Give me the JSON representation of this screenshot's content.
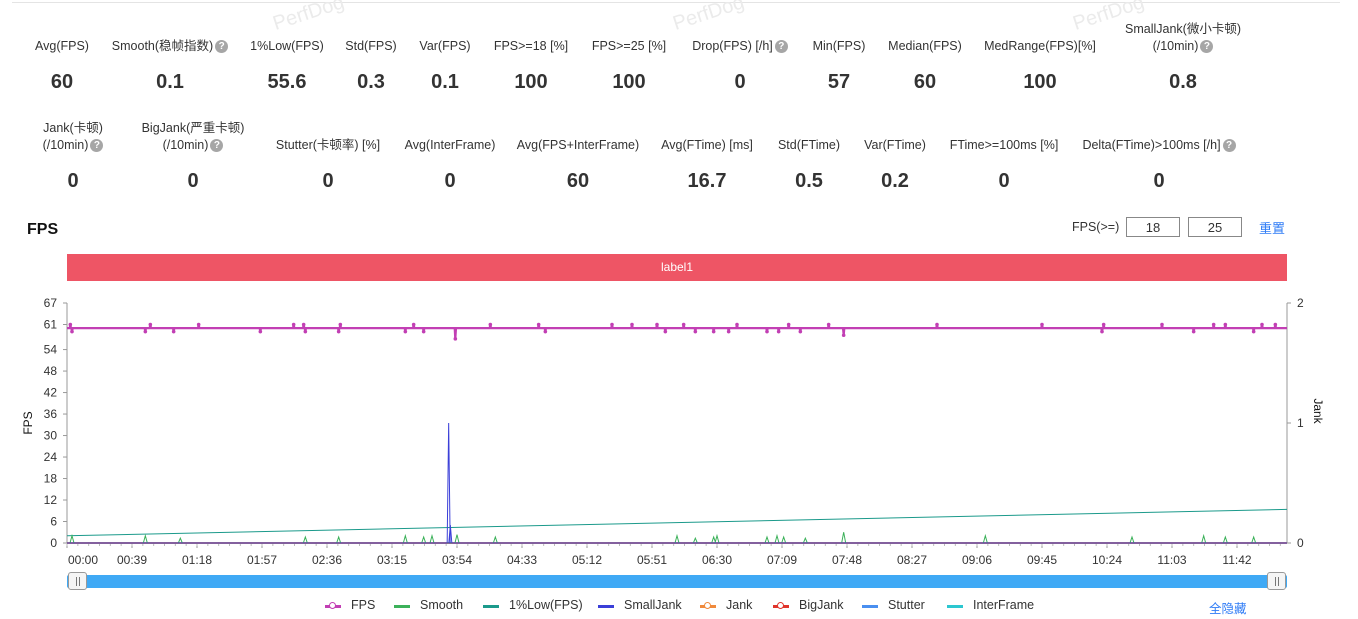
{
  "watermark_text": "PerfDog",
  "metrics_row1": [
    {
      "label": "Avg(FPS)",
      "value": "60",
      "help": false
    },
    {
      "label": "Smooth(稳帧指数)",
      "value": "0.1",
      "help": true
    },
    {
      "label": "1%Low(FPS)",
      "value": "55.6",
      "help": false
    },
    {
      "label": "Std(FPS)",
      "value": "0.3",
      "help": false
    },
    {
      "label": "Var(FPS)",
      "value": "0.1",
      "help": false
    },
    {
      "label": "FPS>=18 [%]",
      "value": "100",
      "help": false
    },
    {
      "label": "FPS>=25 [%]",
      "value": "100",
      "help": false
    },
    {
      "label": "Drop(FPS) [/h]",
      "value": "0",
      "help": true
    },
    {
      "label": "Min(FPS)",
      "value": "57",
      "help": false
    },
    {
      "label": "Median(FPS)",
      "value": "60",
      "help": false
    },
    {
      "label": "MedRange(FPS)[%]",
      "value": "100",
      "help": false
    },
    {
      "label": "SmallJank(微小卡顿)",
      "label2": "(/10min)",
      "value": "0.8",
      "help": true
    }
  ],
  "metrics_row2": [
    {
      "label": "Jank(卡顿)",
      "label2": "(/10min)",
      "value": "0",
      "help": true
    },
    {
      "label": "BigJank(严重卡顿)",
      "label2": "(/10min)",
      "value": "0",
      "help": true
    },
    {
      "label": "Stutter(卡顿率) [%]",
      "value": "0",
      "help": false
    },
    {
      "label": "Avg(InterFrame)",
      "value": "0",
      "help": false
    },
    {
      "label": "Avg(FPS+InterFrame)",
      "value": "60",
      "help": false
    },
    {
      "label": "Avg(FTime) [ms]",
      "value": "16.7",
      "help": false
    },
    {
      "label": "Std(FTime)",
      "value": "0.5",
      "help": false
    },
    {
      "label": "Var(FTime)",
      "value": "0.2",
      "help": false
    },
    {
      "label": "FTime>=100ms [%]",
      "value": "0",
      "help": false
    },
    {
      "label": "Delta(FTime)>100ms [/h]",
      "value": "0",
      "help": true
    }
  ],
  "help_glyph": "?",
  "chart_section": {
    "title": "FPS",
    "filter_label": "FPS(>=)",
    "filter_value_1": "18",
    "filter_value_2": "25",
    "reset_label": "重置",
    "label_bar_text": "label1",
    "hide_all_label": "全隐藏"
  },
  "legend": [
    {
      "name": "FPS",
      "color": "#c23fb4",
      "marker": true
    },
    {
      "name": "Smooth",
      "color": "#3cb15a",
      "marker": false
    },
    {
      "name": "1%Low(FPS)",
      "color": "#1b9a8b",
      "marker": false
    },
    {
      "name": "SmallJank",
      "color": "#3b3fd8",
      "marker": false
    },
    {
      "name": "Jank",
      "color": "#f08a3c",
      "marker": true
    },
    {
      "name": "BigJank",
      "color": "#e0342b",
      "marker": true
    },
    {
      "name": "Stutter",
      "color": "#4a8ff0",
      "marker": false
    },
    {
      "name": "InterFrame",
      "color": "#2cc7d0",
      "marker": false
    }
  ],
  "chart_data": {
    "type": "line",
    "ylabel": "FPS",
    "y2label": "Jank",
    "ylim": [
      0,
      67
    ],
    "y2lim": [
      0,
      2
    ],
    "y_ticks": [
      "0",
      "6",
      "12",
      "18",
      "24",
      "30",
      "36",
      "42",
      "48",
      "54",
      "61",
      "67"
    ],
    "y2_ticks": [
      "0",
      "1",
      "2"
    ],
    "x_ticks": [
      "00:00",
      "00:39",
      "01:18",
      "01:57",
      "02:36",
      "03:15",
      "03:54",
      "04:33",
      "05:12",
      "05:51",
      "06:30",
      "07:09",
      "07:48",
      "08:27",
      "09:06",
      "09:45",
      "10:24",
      "11:03",
      "11:42"
    ],
    "x_tick_seconds": [
      0,
      39,
      78,
      117,
      156,
      195,
      234,
      273,
      312,
      351,
      390,
      429,
      468,
      507,
      546,
      585,
      624,
      663,
      702
    ],
    "x_range_seconds": [
      0,
      732
    ],
    "series": [
      {
        "name": "FPS",
        "baseline": 60,
        "dips": [
          [
            3,
            59
          ],
          [
            47,
            59
          ],
          [
            64,
            59
          ],
          [
            116,
            59
          ],
          [
            143,
            59
          ],
          [
            163,
            59
          ],
          [
            203,
            59
          ],
          [
            214,
            59
          ],
          [
            233,
            57
          ],
          [
            287,
            59
          ],
          [
            359,
            59
          ],
          [
            377,
            59
          ],
          [
            388,
            59
          ],
          [
            397,
            59
          ],
          [
            420,
            59
          ],
          [
            427,
            59
          ],
          [
            440,
            59
          ],
          [
            466,
            58
          ],
          [
            621,
            59
          ],
          [
            676,
            59
          ],
          [
            712,
            59
          ]
        ],
        "peaks": [
          [
            2,
            61
          ],
          [
            50,
            61
          ],
          [
            79,
            61
          ],
          [
            136,
            61
          ],
          [
            142,
            61
          ],
          [
            164,
            61
          ],
          [
            208,
            61
          ],
          [
            254,
            61
          ],
          [
            283,
            61
          ],
          [
            327,
            61
          ],
          [
            339,
            61
          ],
          [
            354,
            61
          ],
          [
            370,
            61
          ],
          [
            402,
            61
          ],
          [
            433,
            61
          ],
          [
            457,
            61
          ],
          [
            522,
            61
          ],
          [
            585,
            61
          ],
          [
            622,
            61
          ],
          [
            657,
            61
          ],
          [
            688,
            61
          ],
          [
            695,
            61
          ],
          [
            717,
            61
          ],
          [
            725,
            61
          ]
        ]
      },
      {
        "name": "Smooth",
        "spikes": [
          [
            3,
            0.06
          ],
          [
            47,
            0.06
          ],
          [
            68,
            0.04
          ],
          [
            143,
            0.05
          ],
          [
            163,
            0.05
          ],
          [
            203,
            0.06
          ],
          [
            214,
            0.05
          ],
          [
            219,
            0.06
          ],
          [
            234,
            0.07
          ],
          [
            257,
            0.05
          ],
          [
            366,
            0.06
          ],
          [
            377,
            0.04
          ],
          [
            388,
            0.05
          ],
          [
            390,
            0.06
          ],
          [
            420,
            0.05
          ],
          [
            426,
            0.06
          ],
          [
            430,
            0.05
          ],
          [
            443,
            0.04
          ],
          [
            466,
            0.09
          ],
          [
            551,
            0.06
          ],
          [
            639,
            0.05
          ],
          [
            682,
            0.06
          ],
          [
            695,
            0.05
          ],
          [
            712,
            0.05
          ]
        ]
      },
      {
        "name": "1%Low(FPS)",
        "start": 0.06,
        "end": 0.28
      },
      {
        "name": "SmallJank",
        "spikes": [
          [
            229,
            1.0
          ],
          [
            230,
            0.15
          ]
        ]
      },
      {
        "name": "Jank",
        "value": 0
      },
      {
        "name": "BigJank",
        "value": 0
      },
      {
        "name": "Stutter",
        "value": 0
      },
      {
        "name": "InterFrame",
        "value": 0
      }
    ]
  }
}
